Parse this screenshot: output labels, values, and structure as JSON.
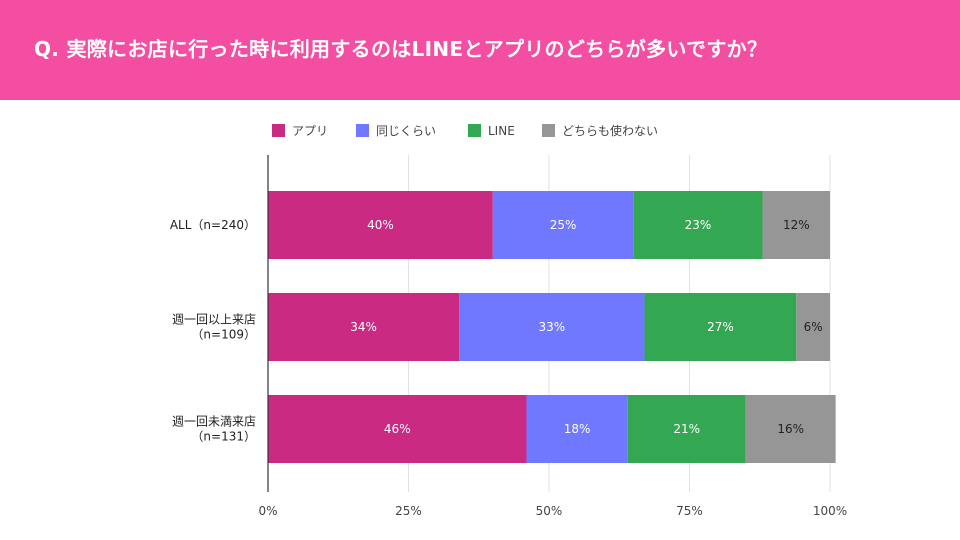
{
  "header": {
    "question": "Q. 実際にお店に行った時に利用するのはLINEとアプリのどちらが多いですか？"
  },
  "colors": {
    "header_bg": "#f34ea2",
    "app": "#cb2a83",
    "same": "#6f78fe",
    "line": "#34a752",
    "neither": "#969696"
  },
  "chart_data": {
    "type": "bar",
    "orientation": "horizontal",
    "stacked": true,
    "percent": true,
    "title": "",
    "xlabel": "",
    "ylabel": "",
    "xlim": [
      0,
      100
    ],
    "x_ticks": [
      "0%",
      "25%",
      "50%",
      "75%",
      "100%"
    ],
    "legend_position": "top",
    "categories": [
      [
        "ALL（n=240）"
      ],
      [
        "週一回以上来店",
        "（n=109）"
      ],
      [
        "週一回未満来店",
        "（n=131）"
      ]
    ],
    "series": [
      {
        "name": "アプリ",
        "color": "#cb2a83",
        "values": [
          40,
          34,
          46
        ],
        "labels": [
          "40%",
          "34%",
          "46%"
        ]
      },
      {
        "name": "同じくらい",
        "color": "#6f78fe",
        "values": [
          25,
          33,
          18
        ],
        "labels": [
          "25%",
          "33%",
          "18%"
        ]
      },
      {
        "name": "LINE",
        "color": "#34a752",
        "values": [
          23,
          27,
          21
        ],
        "labels": [
          "23%",
          "27%",
          "21%"
        ]
      },
      {
        "name": "どちらも使わない",
        "color": "#969696",
        "values": [
          12,
          6,
          16
        ],
        "labels": [
          "12%",
          "6%",
          "16%"
        ]
      }
    ]
  }
}
